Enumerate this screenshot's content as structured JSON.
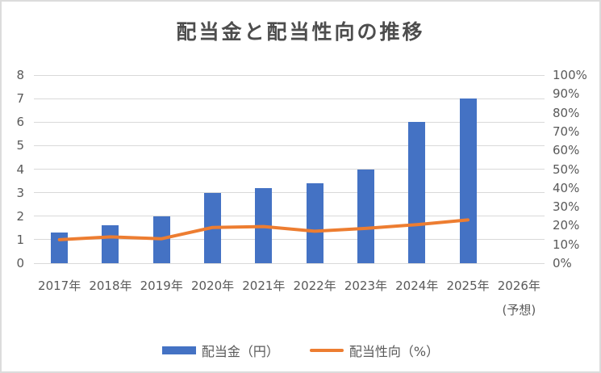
{
  "chart_data": {
    "type": "combo",
    "title": "配当金と配当性向の推移",
    "categories": [
      "2017年",
      "2018年",
      "2019年",
      "2020年",
      "2021年",
      "2022年",
      "2023年",
      "2024年",
      "2025年",
      "2026年"
    ],
    "category_notes": {
      "2026年": "(予想)"
    },
    "series": [
      {
        "name": "配当金（円）",
        "type": "bar",
        "axis": "left",
        "color": "#4472C4",
        "values": [
          1.3,
          1.6,
          2,
          3,
          3.2,
          3.4,
          4,
          6,
          7,
          null
        ]
      },
      {
        "name": "配当性向（%）",
        "type": "line",
        "axis": "right",
        "color": "#ED7D31",
        "values": [
          12.5,
          14,
          13,
          19,
          19.5,
          17,
          18.5,
          20.5,
          23,
          null
        ]
      }
    ],
    "left_axis": {
      "min": 0,
      "max": 8,
      "step": 1,
      "ticks": [
        "0",
        "1",
        "2",
        "3",
        "4",
        "5",
        "6",
        "7",
        "8"
      ]
    },
    "right_axis": {
      "min": 0,
      "max": 100,
      "step": 10,
      "ticks": [
        "0%",
        "10%",
        "20%",
        "30%",
        "40%",
        "50%",
        "60%",
        "70%",
        "80%",
        "90%",
        "100%"
      ]
    },
    "gridlines": true,
    "legend_position": "bottom",
    "colors": {
      "bar": "#4472C4",
      "line": "#ED7D31",
      "grid": "#D9D9D9",
      "axis_text": "#595959",
      "title_text": "#4D4D4D",
      "frame_border": "#DCDCDC",
      "background": "#FFFFFF"
    }
  }
}
